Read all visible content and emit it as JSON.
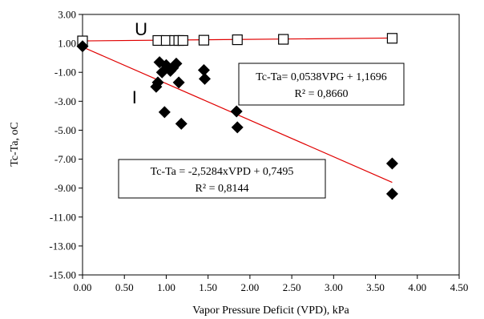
{
  "chart_data": {
    "type": "scatter",
    "title": "",
    "xlabel": "Vapor Pressure Deficit (VPD), kPa",
    "ylabel": "Tc-Ta, oC",
    "xlim": [
      0,
      4.5
    ],
    "ylim": [
      -15,
      3
    ],
    "x_ticks": [
      "0.00",
      "0.50",
      "1.00",
      "1.50",
      "2.00",
      "2.50",
      "3.00",
      "3.50",
      "4.00",
      "4.50"
    ],
    "y_ticks": [
      "3.00",
      "1.00",
      "-1.00",
      "-3.00",
      "-5.00",
      "-7.00",
      "-9.00",
      "-11.00",
      "-13.00",
      "-15.00"
    ],
    "grid": false,
    "series": [
      {
        "name": "U",
        "marker": "square-open",
        "color": "#000000",
        "points": [
          {
            "x": 0.0,
            "y": 1.17
          },
          {
            "x": 0.9,
            "y": 1.2
          },
          {
            "x": 1.0,
            "y": 1.2
          },
          {
            "x": 1.1,
            "y": 1.2
          },
          {
            "x": 1.15,
            "y": 1.2
          },
          {
            "x": 1.2,
            "y": 1.2
          },
          {
            "x": 1.45,
            "y": 1.22
          },
          {
            "x": 1.85,
            "y": 1.25
          },
          {
            "x": 2.4,
            "y": 1.28
          },
          {
            "x": 3.7,
            "y": 1.35
          }
        ],
        "trendline": {
          "slope": 0.0538,
          "intercept": 1.1696,
          "x_range": [
            0,
            3.7
          ],
          "color": "#e00000"
        },
        "equation": "Tc-Ta= 0,0538VPG + 1,1696",
        "r2": "R² = 0,8660"
      },
      {
        "name": "I",
        "marker": "diamond-filled",
        "color": "#000000",
        "points": [
          {
            "x": 0.0,
            "y": 0.8
          },
          {
            "x": 0.88,
            "y": -2.0
          },
          {
            "x": 0.9,
            "y": -1.7
          },
          {
            "x": 0.92,
            "y": -0.3
          },
          {
            "x": 0.95,
            "y": -1.0
          },
          {
            "x": 0.98,
            "y": -3.75
          },
          {
            "x": 1.0,
            "y": -0.5
          },
          {
            "x": 1.05,
            "y": -0.9
          },
          {
            "x": 1.08,
            "y": -0.7
          },
          {
            "x": 1.12,
            "y": -0.4
          },
          {
            "x": 1.15,
            "y": -1.7
          },
          {
            "x": 1.18,
            "y": -4.55
          },
          {
            "x": 1.45,
            "y": -0.85
          },
          {
            "x": 1.46,
            "y": -1.45
          },
          {
            "x": 1.84,
            "y": -3.7
          },
          {
            "x": 1.85,
            "y": -4.8
          },
          {
            "x": 3.7,
            "y": -7.3
          },
          {
            "x": 3.7,
            "y": -9.4
          }
        ],
        "trendline": {
          "slope": -2.5284,
          "intercept": 0.7495,
          "x_range": [
            0,
            3.7
          ],
          "color": "#e00000"
        },
        "equation": "Tc-Ta = -2,5284xVPD + 0,7495",
        "r2": "R² = 0,8144"
      }
    ],
    "annotations": [
      {
        "text": "U",
        "x": 0.7,
        "y": 2.0
      },
      {
        "text": "I",
        "x": 0.62,
        "y": -2.7
      }
    ]
  }
}
